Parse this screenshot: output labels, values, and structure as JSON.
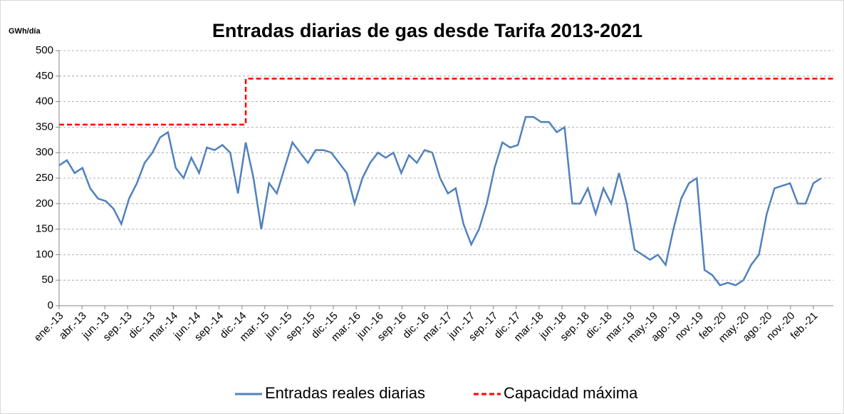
{
  "chart_data": {
    "type": "line",
    "title": "Entradas diarias de gas desde Tarifa 2013-2021",
    "y_label": "GWh/día",
    "x": [
      "ene.-13",
      "feb.-13",
      "mar.-13",
      "abr.-13",
      "may.-13",
      "jun.-13",
      "jul.-13",
      "ago.-13",
      "sep.-13",
      "oct.-13",
      "nov.-13",
      "dic.-13",
      "ene.-14",
      "feb.-14",
      "mar.-14",
      "abr.-14",
      "may.-14",
      "jun.-14",
      "jul.-14",
      "ago.-14",
      "sep.-14",
      "oct.-14",
      "nov.-14",
      "dic.-14",
      "ene.-15",
      "feb.-15",
      "mar.-15",
      "abr.-15",
      "may.-15",
      "jun.-15",
      "jul.-15",
      "ago.-15",
      "sep.-15",
      "oct.-15",
      "nov.-15",
      "dic.-15",
      "ene.-16",
      "feb.-16",
      "mar.-16",
      "abr.-16",
      "may.-16",
      "jun.-16",
      "jul.-16",
      "ago.-16",
      "sep.-16",
      "oct.-16",
      "nov.-16",
      "dic.-16",
      "ene.-17",
      "feb.-17",
      "mar.-17",
      "abr.-17",
      "may.-17",
      "jun.-17",
      "jul.-17",
      "ago.-17",
      "sep.-17",
      "oct.-17",
      "nov.-17",
      "dic.-17",
      "ene.-18",
      "feb.-18",
      "mar.-18",
      "abr.-18",
      "may.-18",
      "jun.-18",
      "jul.-18",
      "ago.-18",
      "sep.-18",
      "oct.-18",
      "nov.-18",
      "dic.-18",
      "ene.-19",
      "feb.-19",
      "mar.-19",
      "abr.-19",
      "may.-19",
      "jun.-19",
      "jul.-19",
      "ago.-19",
      "sep.-19",
      "oct.-19",
      "nov.-19",
      "dic.-19",
      "ene.-20",
      "feb.-20",
      "mar.-20",
      "abr.-20",
      "may.-20",
      "jun.-20",
      "jul.-20",
      "ago.-20",
      "sep.-20",
      "oct.-20",
      "nov.-20",
      "dic.-20",
      "ene.-21",
      "feb.-21",
      "mar.-21"
    ],
    "series": [
      {
        "name": "Entradas reales diarias",
        "color": "#4f81bd",
        "values": [
          275,
          285,
          260,
          270,
          230,
          210,
          205,
          190,
          160,
          210,
          240,
          280,
          300,
          330,
          340,
          270,
          250,
          290,
          260,
          310,
          305,
          315,
          300,
          220,
          320,
          250,
          150,
          240,
          220,
          270,
          320,
          300,
          280,
          305,
          305,
          300,
          280,
          260,
          200,
          250,
          280,
          300,
          290,
          300,
          260,
          295,
          280,
          305,
          300,
          250,
          220,
          230,
          160,
          120,
          150,
          200,
          270,
          320,
          310,
          315,
          370,
          370,
          360,
          360,
          340,
          350,
          200,
          200,
          230,
          180,
          230,
          200,
          260,
          200,
          110,
          100,
          90,
          100,
          80,
          150,
          210,
          240,
          250,
          70,
          60,
          40,
          45,
          40,
          50,
          80,
          100,
          180,
          230,
          235,
          240,
          200,
          200,
          240,
          250
        ]
      },
      {
        "name": "Capacidad máxima",
        "color": "#ff0000",
        "dash": true,
        "values": [
          355,
          355,
          355,
          355,
          355,
          355,
          355,
          355,
          355,
          355,
          355,
          355,
          355,
          355,
          355,
          355,
          355,
          355,
          355,
          355,
          355,
          355,
          355,
          355,
          445,
          445,
          445,
          445,
          445,
          445,
          445,
          445,
          445,
          445,
          445,
          445,
          445,
          445,
          445,
          445,
          445,
          445,
          445,
          445,
          445,
          445,
          445,
          445,
          445,
          445,
          445,
          445,
          445,
          445,
          445,
          445,
          445,
          445,
          445,
          445,
          445,
          445,
          445,
          445,
          445,
          445,
          445,
          445,
          445,
          445,
          445,
          445,
          445,
          445,
          445,
          445,
          445,
          445,
          445,
          445,
          445,
          445,
          445,
          445,
          445,
          445,
          445,
          445,
          445,
          445,
          445,
          445,
          445,
          445,
          445,
          445,
          445,
          445,
          445
        ]
      }
    ],
    "xticks": [
      "ene.-13",
      "abr.-13",
      "jun.-13",
      "sep.-13",
      "dic.-13",
      "mar.-14",
      "jun.-14",
      "sep.-14",
      "dic.-14",
      "mar.-15",
      "jun.-15",
      "sep.-15",
      "dic.-15",
      "mar.-16",
      "jun.-16",
      "sep.-16",
      "dic.-16",
      "mar.-17",
      "jun.-17",
      "sep.-17",
      "dic.-17",
      "mar.-18",
      "jun.-18",
      "sep.-18",
      "dic.-18",
      "mar.-19",
      "may.-19",
      "ago.-19",
      "nov.-19",
      "feb.-20",
      "may.-20",
      "ago.-20",
      "nov.-20",
      "feb.-21"
    ],
    "ylim": [
      0,
      500
    ],
    "yticks": [
      0,
      50,
      100,
      150,
      200,
      250,
      300,
      350,
      400,
      450,
      500
    ],
    "grid": true,
    "legend": "bottom"
  }
}
